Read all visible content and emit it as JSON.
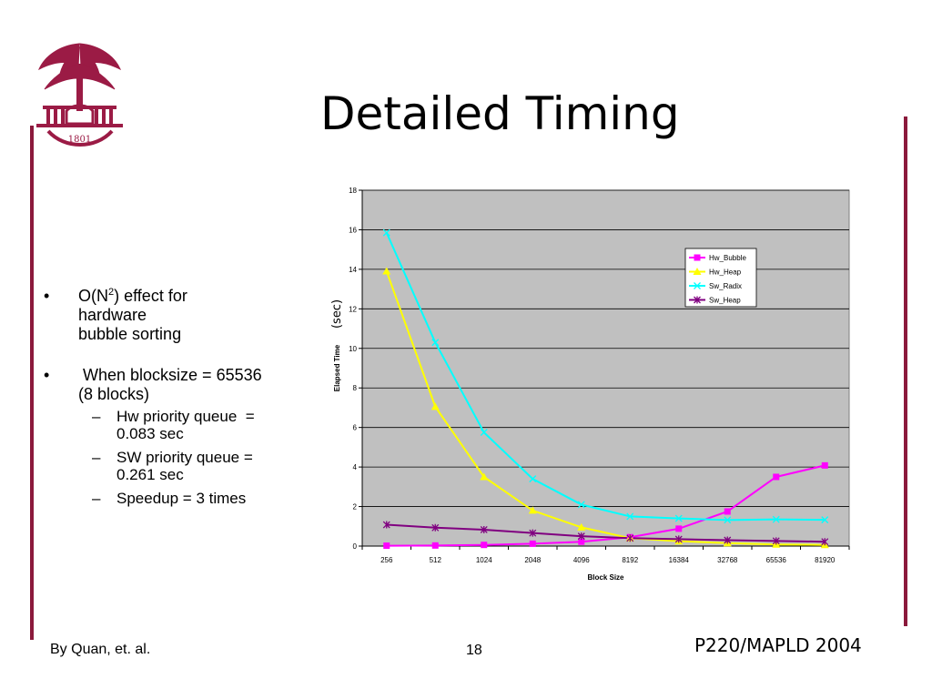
{
  "slide": {
    "title": "Detailed Timing",
    "bullets": [
      {
        "marker": "•",
        "text_before_sup": "O(N",
        "sup": "2",
        "text_after_sup": ") effect for",
        "line2": "hardware",
        "line3": "bubble sorting"
      },
      {
        "marker": "•",
        "line1": " When blocksize = 65536",
        "line2": "(8 blocks)"
      }
    ],
    "sub_bullets": [
      {
        "marker": "–",
        "line1": "Hw priority queue  =",
        "line2": "0.083 sec"
      },
      {
        "marker": "–",
        "line1": "SW priority queue =",
        "line2": "0.261 sec"
      },
      {
        "marker": "–",
        "line1": "Speedup = 3 times",
        "line2": ""
      }
    ],
    "footer_left": "By Quan, et. al.",
    "footer_center": "18",
    "footer_right": "P220/MAPLD 2004",
    "logo_text": "1801",
    "accent_color": "#8b1a3c"
  },
  "chart_data": {
    "type": "line",
    "title": "",
    "xlabel": "Block Size",
    "ylabel": "Elapsed Time",
    "ylabel_unit": "(sec)",
    "ylim": [
      0,
      18
    ],
    "yticks": [
      0,
      2,
      4,
      6,
      8,
      10,
      12,
      14,
      16,
      18
    ],
    "grid": "horizontal",
    "legend_position": "top-right",
    "plot_background": "#c0c0c0",
    "categories": [
      "256",
      "512",
      "1024",
      "2048",
      "4096",
      "8192",
      "16384",
      "32768",
      "65536",
      "81920"
    ],
    "series": [
      {
        "name": "Hw_Bubble",
        "color": "#ff00ff",
        "marker": "square",
        "values": [
          0.02,
          0.03,
          0.06,
          0.12,
          0.22,
          0.45,
          0.88,
          1.75,
          3.5,
          4.08
        ]
      },
      {
        "name": "Hw_Heap",
        "color": "#ffff00",
        "marker": "triangle",
        "values": [
          13.9,
          7.05,
          3.5,
          1.8,
          0.95,
          0.4,
          0.25,
          0.15,
          0.083,
          0.06
        ]
      },
      {
        "name": "Sw_Radix",
        "color": "#00ffff",
        "marker": "x",
        "values": [
          15.85,
          10.3,
          5.75,
          3.4,
          2.1,
          1.5,
          1.4,
          1.32,
          1.35,
          1.33
        ]
      },
      {
        "name": "Sw_Heap",
        "color": "#800080",
        "marker": "star",
        "values": [
          1.08,
          0.93,
          0.83,
          0.66,
          0.5,
          0.4,
          0.35,
          0.3,
          0.261,
          0.22
        ]
      }
    ]
  }
}
